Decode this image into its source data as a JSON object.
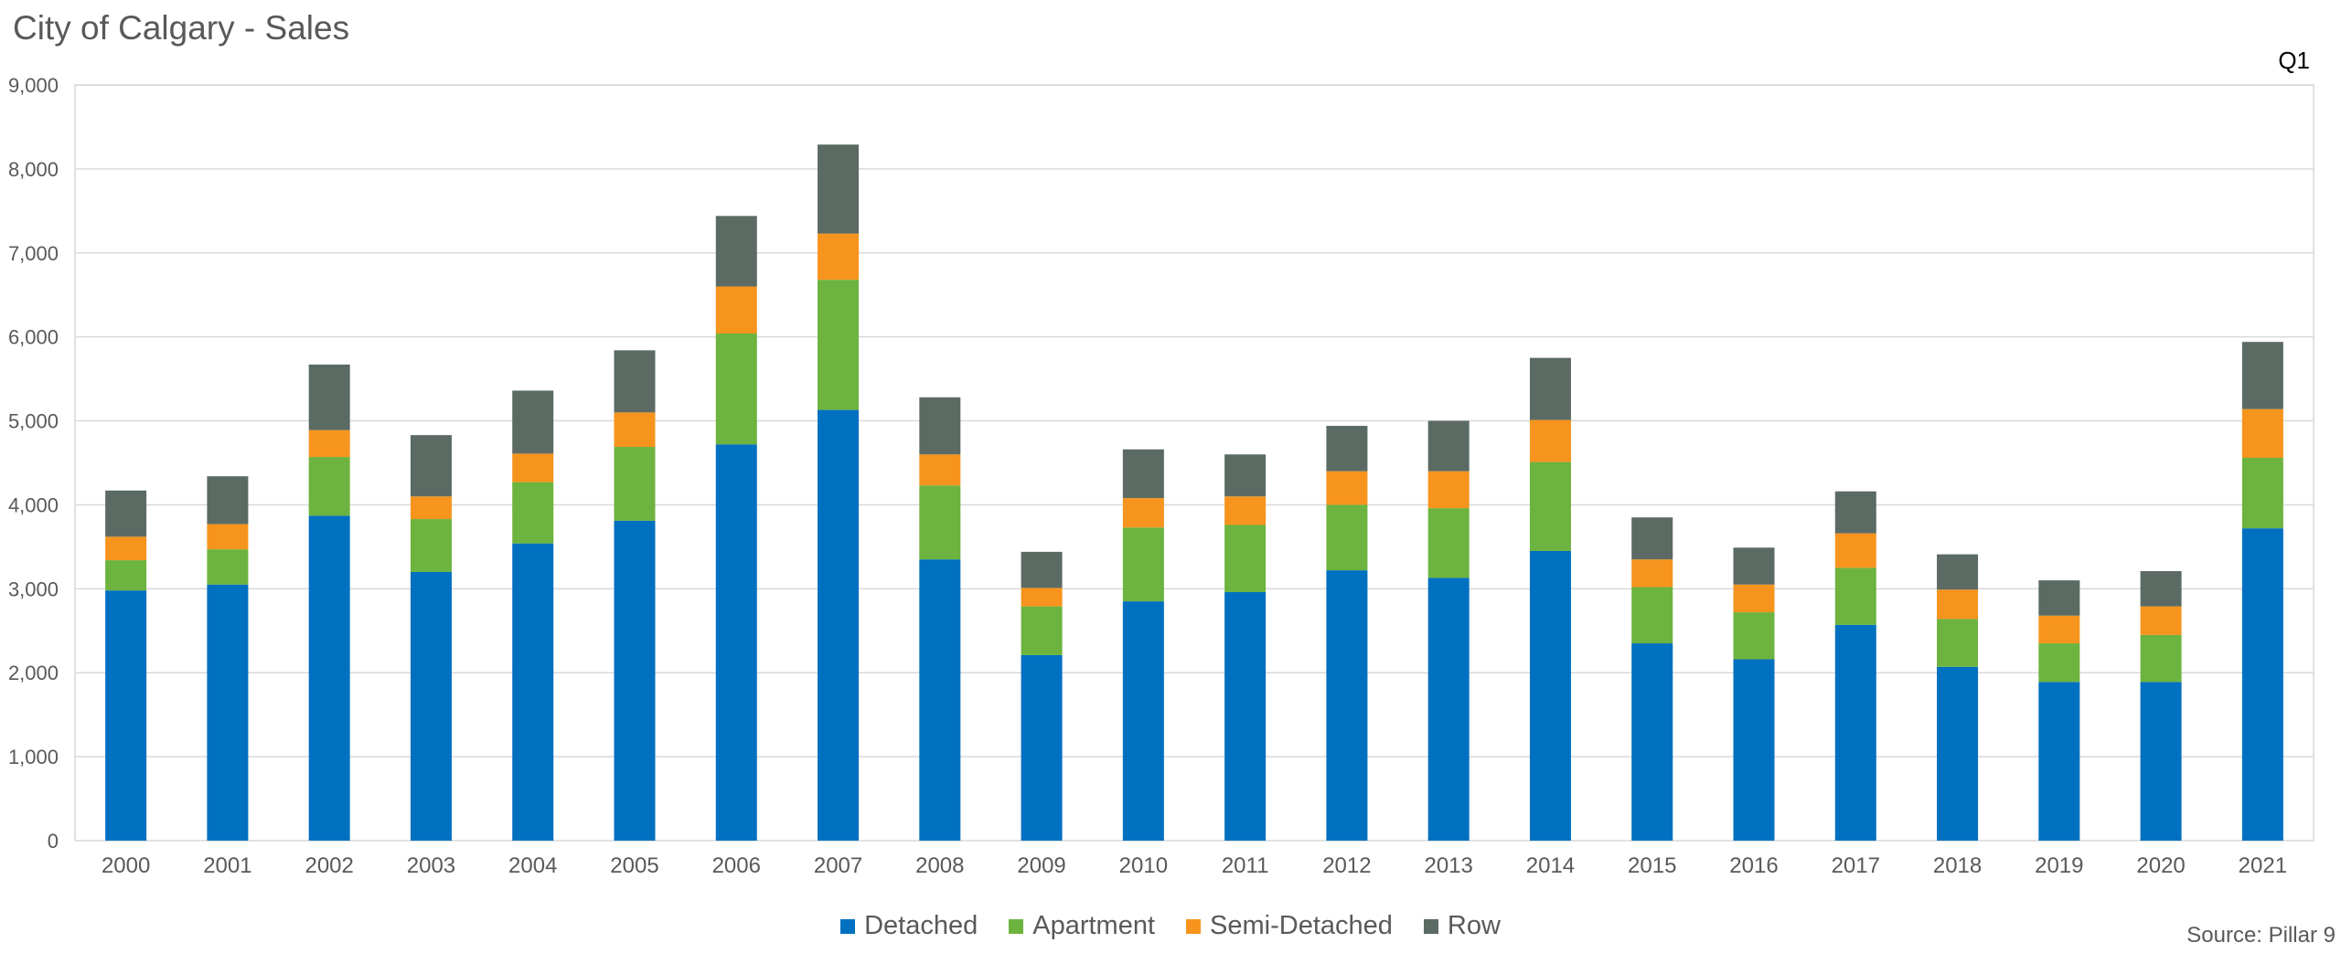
{
  "chart_data": {
    "type": "bar",
    "stacked": true,
    "title": "City of Calgary - Sales",
    "annotation": "Q1",
    "source": "Source: Pillar 9",
    "xlabel": "",
    "ylabel": "",
    "ylim": [
      0,
      9000
    ],
    "yticks": [
      "0",
      "1,000",
      "2,000",
      "3,000",
      "4,000",
      "5,000",
      "6,000",
      "7,000",
      "8,000",
      "9,000"
    ],
    "grid": true,
    "legend_position": "bottom",
    "categories": [
      "2000",
      "2001",
      "2002",
      "2003",
      "2004",
      "2005",
      "2006",
      "2007",
      "2008",
      "2009",
      "2010",
      "2011",
      "2012",
      "2013",
      "2014",
      "2015",
      "2016",
      "2017",
      "2018",
      "2019",
      "2020",
      "2021"
    ],
    "series": [
      {
        "name": "Detached",
        "color": "#0070C0",
        "values": [
          2980,
          3050,
          3870,
          3200,
          3540,
          3810,
          4720,
          5130,
          3350,
          2210,
          2850,
          2960,
          3220,
          3130,
          3450,
          2350,
          2160,
          2570,
          2070,
          1890,
          1890,
          3720
        ]
      },
      {
        "name": "Apartment",
        "color": "#6DB33F",
        "values": [
          360,
          420,
          700,
          630,
          730,
          880,
          1320,
          1550,
          880,
          580,
          880,
          800,
          780,
          830,
          1060,
          670,
          560,
          680,
          570,
          460,
          560,
          840
        ]
      },
      {
        "name": "Semi-Detached",
        "color": "#F7941D",
        "values": [
          280,
          300,
          320,
          270,
          340,
          410,
          560,
          550,
          370,
          220,
          350,
          340,
          400,
          440,
          500,
          330,
          330,
          410,
          350,
          330,
          340,
          580
        ]
      },
      {
        "name": "Row",
        "color": "#5B6B63",
        "values": [
          550,
          570,
          780,
          730,
          750,
          740,
          840,
          1060,
          680,
          430,
          580,
          500,
          540,
          600,
          740,
          500,
          440,
          500,
          420,
          420,
          420,
          800
        ]
      }
    ]
  }
}
